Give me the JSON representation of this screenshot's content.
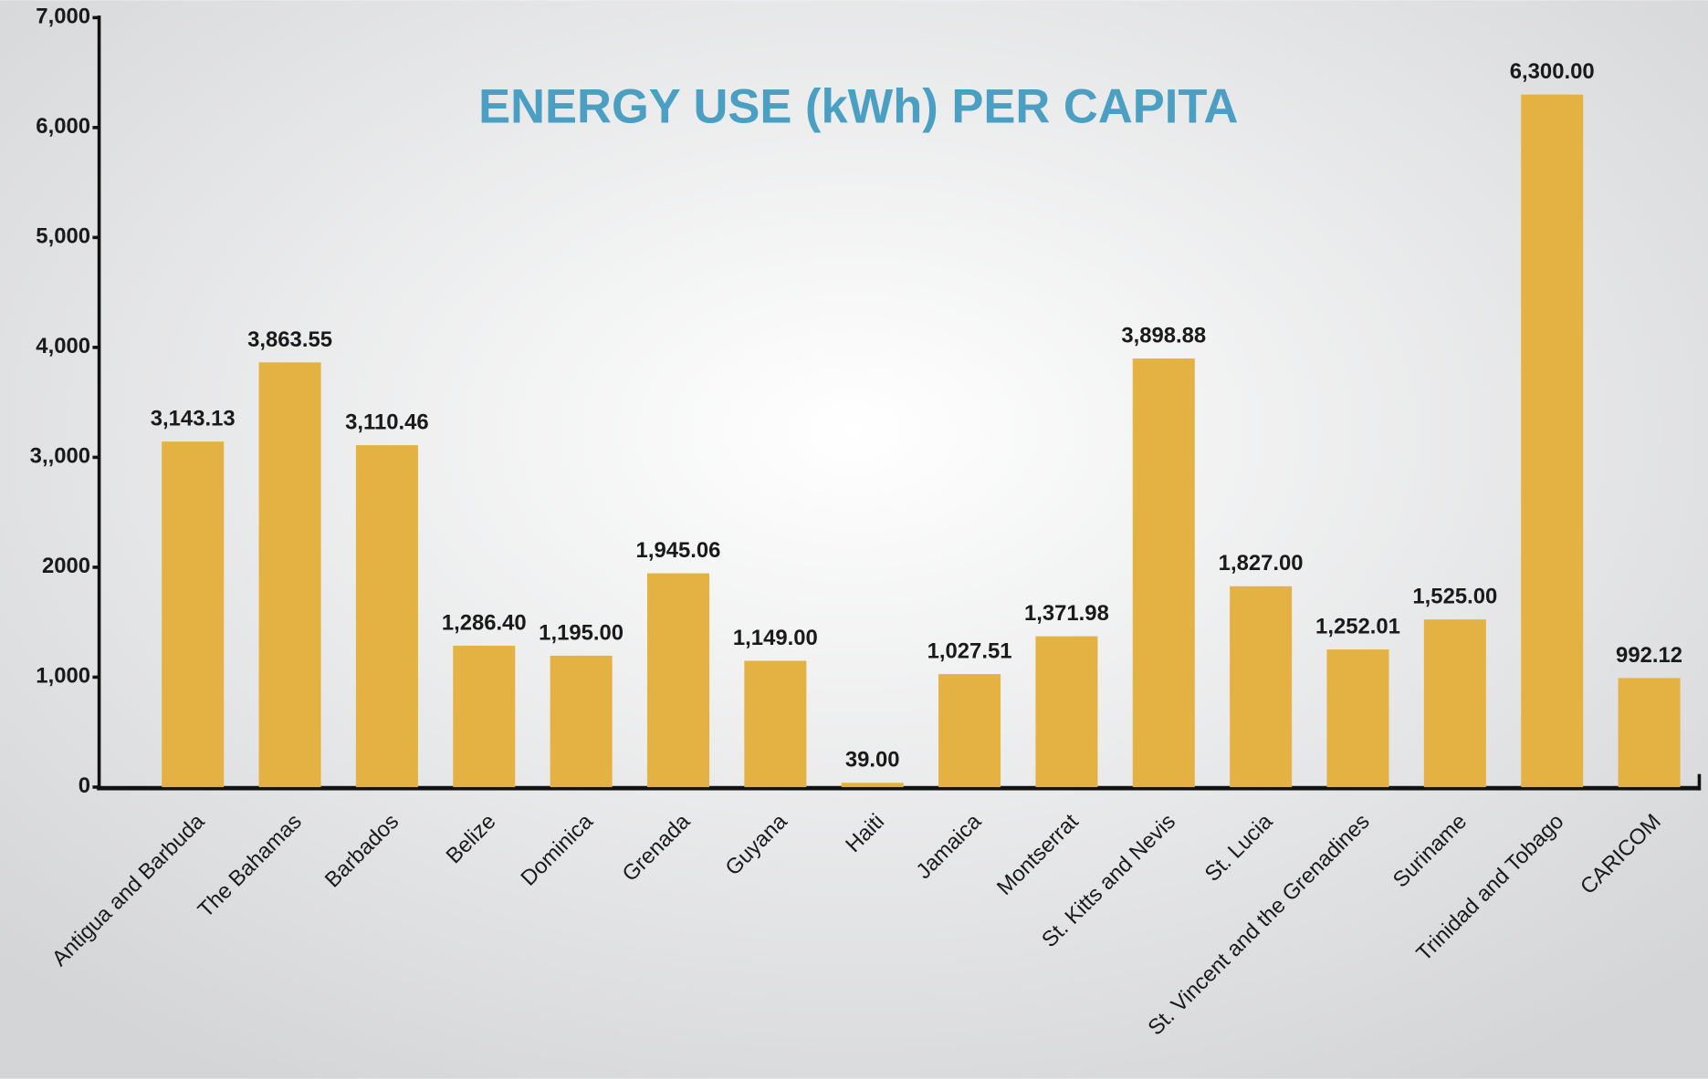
{
  "chart_data": {
    "type": "bar",
    "title": "ENERGY USE (kWh) PER CAPITA",
    "categories": [
      "Antigua and Barbuda",
      "The Bahamas",
      "Barbados",
      "Belize",
      "Dominica",
      "Grenada",
      "Guyana",
      "Haiti",
      "Jamaica",
      "Montserrat",
      "St. Kitts and Nevis",
      "St. Lucia",
      "St. Vincent and the Grenadines",
      "Suriname",
      "Trinidad and Tobago",
      "CARICOM"
    ],
    "values": [
      3143.13,
      3863.55,
      3110.46,
      1286.4,
      1195.0,
      1945.06,
      1149.0,
      39.0,
      1027.51,
      1371.98,
      3898.88,
      1827.0,
      1252.01,
      1525.0,
      6300.0,
      992.12
    ],
    "value_labels": [
      "3,143.13",
      "3,863.55",
      "3,110.46",
      "1,286.40",
      "1,195.00",
      "1,945.06",
      "1,149.00",
      "39.00",
      "1,027.51",
      "1,371.98",
      "3,898.88",
      "1,827.00",
      "1,252.01",
      "1,525.00",
      "6,300.00",
      "992.12"
    ],
    "color": "#e3b243",
    "ylim": [
      0,
      7000
    ],
    "yticks": [
      0,
      {
        "value": 1000,
        "label": "1,000"
      },
      2000,
      {
        "value": 3000,
        "label": "3,,000"
      },
      {
        "value": 4000,
        "label": "4,000"
      },
      {
        "value": 5000,
        "label": "5,000"
      },
      {
        "value": 6000,
        "label": "6,000"
      },
      {
        "value": 7000,
        "label": "7,000"
      }
    ]
  }
}
